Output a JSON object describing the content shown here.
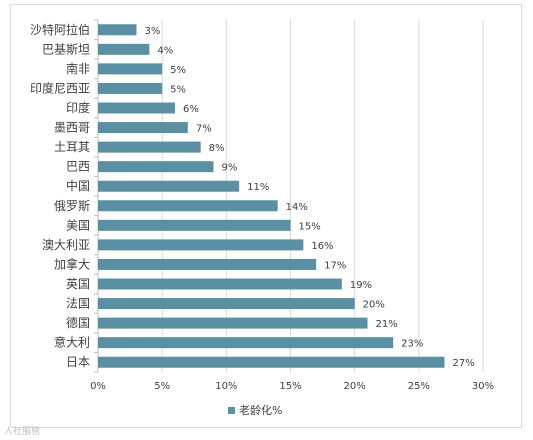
{
  "chart_data": {
    "type": "bar",
    "orientation": "horizontal",
    "categories": [
      "沙特阿拉伯",
      "巴基斯坦",
      "南非",
      "印度尼西亚",
      "印度",
      "墨西哥",
      "土耳其",
      "巴西",
      "中国",
      "俄罗斯",
      "美国",
      "澳大利亚",
      "加拿大",
      "英国",
      "法国",
      "德国",
      "意大利",
      "日本"
    ],
    "series": [
      {
        "name": "老龄化%",
        "values": [
          3,
          4,
          5,
          5,
          6,
          7,
          8,
          9,
          11,
          14,
          15,
          16,
          17,
          19,
          20,
          21,
          23,
          27
        ]
      }
    ],
    "data_labels": [
      "3%",
      "4%",
      "5%",
      "5%",
      "6%",
      "7%",
      "8%",
      "9%",
      "11%",
      "14%",
      "15%",
      "16%",
      "17%",
      "19%",
      "20%",
      "21%",
      "23%",
      "27%"
    ],
    "x_ticks": [
      "0%",
      "5%",
      "10%",
      "15%",
      "20%",
      "25%",
      "30%"
    ],
    "xlim": [
      0,
      30
    ],
    "grid": "vertical",
    "legend_position": "bottom",
    "colors": {
      "bar": "#5b8fa3",
      "grid": "#d9d9d9",
      "axis": "#bfbfbf",
      "text": "#404040"
    }
  },
  "legend": {
    "label": "老龄化%"
  },
  "watermark": {
    "text": "人社服務"
  }
}
